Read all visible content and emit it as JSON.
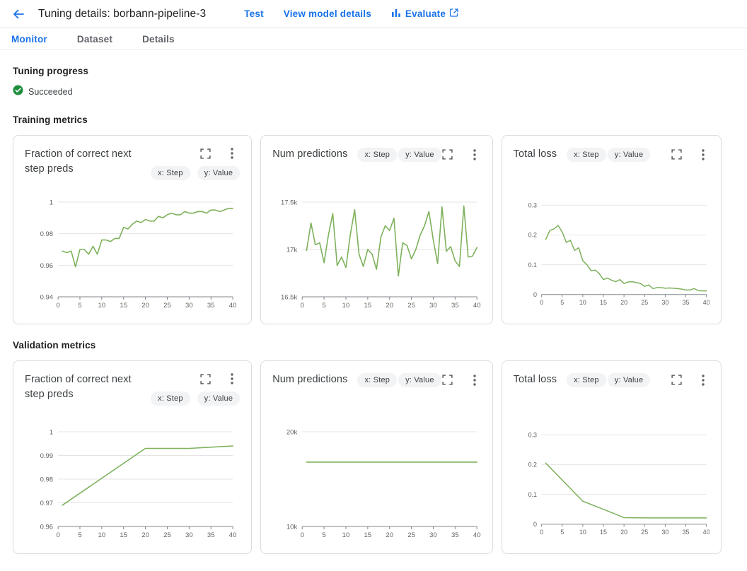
{
  "page": {
    "header": {
      "title": "Tuning details: borbann-pipeline-3",
      "actions": {
        "test": "Test",
        "view_model": "View model details",
        "evaluate": "Evaluate"
      }
    },
    "tabs": [
      {
        "label": "Monitor",
        "active": true
      },
      {
        "label": "Dataset",
        "active": false
      },
      {
        "label": "Details",
        "active": false
      }
    ],
    "sections": {
      "progress_heading": "Tuning progress",
      "training_heading": "Training metrics",
      "validation_heading": "Validation metrics"
    },
    "status": {
      "label": "Succeeded",
      "icon": "check-circle"
    }
  },
  "colors": {
    "accent": "#1a73e8",
    "success_green": "#1e8e3e",
    "chart_line": "#7eb15c",
    "grid_line": "#e4e4e4",
    "axis_line": "#80868b",
    "tick_text": "#616161",
    "chip_bg": "#f1f3f4",
    "card_border": "#dadce0"
  },
  "icons": {
    "back": "arrow-left",
    "evaluate": "bar-chart",
    "external": "launch",
    "expand": "fullscreen",
    "menu": "kebab-vertical",
    "status": "check-circle"
  },
  "chart_data": [
    {
      "type": "line",
      "section": "Training metrics",
      "title": "Fraction of correct next step preds",
      "x_chip": "x: Step",
      "y_chip": "y: Value",
      "xlim": [
        0,
        40
      ],
      "ylim": [
        0.94,
        1
      ],
      "xticks": [
        0,
        5,
        10,
        15,
        20,
        25,
        30,
        35,
        40
      ],
      "yticks": [
        {
          "value": 0.94,
          "label": "0.94"
        },
        {
          "value": 0.96,
          "label": "0.96"
        },
        {
          "value": 0.98,
          "label": "0.98"
        },
        {
          "value": 1,
          "label": "1"
        }
      ],
      "x": [
        1,
        2,
        3,
        4,
        5,
        6,
        7,
        8,
        9,
        10,
        11,
        12,
        13,
        14,
        15,
        16,
        17,
        18,
        19,
        20,
        21,
        22,
        23,
        24,
        25,
        26,
        27,
        28,
        29,
        30,
        31,
        32,
        33,
        34,
        35,
        36,
        37,
        38,
        39,
        40
      ],
      "series": [
        {
          "name": "Value",
          "values": [
            0.969,
            0.968,
            0.969,
            0.959,
            0.97,
            0.97,
            0.967,
            0.972,
            0.967,
            0.976,
            0.976,
            0.975,
            0.977,
            0.977,
            0.984,
            0.983,
            0.986,
            0.988,
            0.987,
            0.989,
            0.988,
            0.988,
            0.991,
            0.99,
            0.992,
            0.993,
            0.992,
            0.992,
            0.994,
            0.993,
            0.993,
            0.994,
            0.994,
            0.993,
            0.995,
            0.995,
            0.994,
            0.995,
            0.996,
            0.996
          ]
        }
      ]
    },
    {
      "type": "line",
      "section": "Training metrics",
      "title": "Num predictions",
      "x_chip": "x: Step",
      "y_chip": "y: Value",
      "xlim": [
        0,
        40
      ],
      "ylim": [
        16500,
        17500
      ],
      "xticks": [
        0,
        5,
        10,
        15,
        20,
        25,
        30,
        35,
        40
      ],
      "yticks": [
        {
          "value": 16500,
          "label": "16.5k"
        },
        {
          "value": 17000,
          "label": "17k"
        },
        {
          "value": 17500,
          "label": "17.5k"
        }
      ],
      "x": [
        1,
        2,
        3,
        4,
        5,
        6,
        7,
        8,
        9,
        10,
        11,
        12,
        13,
        14,
        15,
        16,
        17,
        18,
        19,
        20,
        21,
        22,
        23,
        24,
        25,
        26,
        27,
        28,
        29,
        30,
        31,
        32,
        33,
        34,
        35,
        36,
        37,
        38,
        39,
        40
      ],
      "series": [
        {
          "name": "Value",
          "values": [
            16990,
            17280,
            17050,
            17070,
            16860,
            17150,
            17380,
            16830,
            16920,
            16810,
            17150,
            17420,
            16950,
            16820,
            17000,
            16950,
            16790,
            17130,
            17250,
            17200,
            17330,
            16720,
            17070,
            17040,
            16900,
            17000,
            17150,
            17250,
            17400,
            17100,
            16850,
            17450,
            16980,
            17030,
            16880,
            16820,
            17460,
            16920,
            16930,
            17020
          ]
        }
      ]
    },
    {
      "type": "line",
      "section": "Training metrics",
      "title": "Total loss",
      "x_chip": "x: Step",
      "y_chip": "y: Value",
      "xlim": [
        0,
        40
      ],
      "ylim": [
        0,
        0.3
      ],
      "xticks": [
        0,
        5,
        10,
        15,
        20,
        25,
        30,
        35,
        40
      ],
      "yticks": [
        {
          "value": 0,
          "label": "0"
        },
        {
          "value": 0.1,
          "label": "0.1"
        },
        {
          "value": 0.2,
          "label": "0.2"
        },
        {
          "value": 0.3,
          "label": "0.3"
        }
      ],
      "x": [
        1,
        2,
        3,
        4,
        5,
        6,
        7,
        8,
        9,
        10,
        11,
        12,
        13,
        14,
        15,
        16,
        17,
        18,
        19,
        20,
        21,
        22,
        23,
        24,
        25,
        26,
        27,
        28,
        29,
        30,
        31,
        32,
        33,
        34,
        35,
        36,
        37,
        38,
        39,
        40
      ],
      "series": [
        {
          "name": "Value",
          "values": [
            0.185,
            0.215,
            0.22,
            0.232,
            0.21,
            0.175,
            0.182,
            0.148,
            0.157,
            0.113,
            0.1,
            0.08,
            0.082,
            0.07,
            0.05,
            0.055,
            0.048,
            0.043,
            0.05,
            0.037,
            0.042,
            0.043,
            0.04,
            0.037,
            0.027,
            0.032,
            0.02,
            0.023,
            0.023,
            0.021,
            0.022,
            0.021,
            0.02,
            0.018,
            0.015,
            0.015,
            0.02,
            0.013,
            0.012,
            0.012
          ]
        }
      ]
    },
    {
      "type": "line",
      "section": "Validation metrics",
      "title": "Fraction of correct next step preds",
      "x_chip": "x: Step",
      "y_chip": "y: Value",
      "xlim": [
        0,
        40
      ],
      "ylim": [
        0.96,
        1
      ],
      "xticks": [
        0,
        5,
        10,
        15,
        20,
        25,
        30,
        35,
        40
      ],
      "yticks": [
        {
          "value": 0.96,
          "label": "0.96"
        },
        {
          "value": 0.97,
          "label": "0.97"
        },
        {
          "value": 0.98,
          "label": "0.98"
        },
        {
          "value": 0.99,
          "label": "0.99"
        },
        {
          "value": 1,
          "label": "1"
        }
      ],
      "x": [
        1,
        20,
        30,
        40
      ],
      "series": [
        {
          "name": "Value",
          "values": [
            0.969,
            0.993,
            0.993,
            0.994
          ]
        }
      ]
    },
    {
      "type": "line",
      "section": "Validation metrics",
      "title": "Num predictions",
      "x_chip": "x: Step",
      "y_chip": "y: Value",
      "xlim": [
        0,
        40
      ],
      "ylim": [
        10000,
        20000
      ],
      "xticks": [
        0,
        5,
        10,
        15,
        20,
        25,
        30,
        35,
        40
      ],
      "yticks": [
        {
          "value": 10000,
          "label": "10k"
        },
        {
          "value": 20000,
          "label": "20k"
        }
      ],
      "x": [
        1,
        10,
        20,
        30,
        40
      ],
      "series": [
        {
          "name": "Value",
          "values": [
            16800,
            16800,
            16800,
            16800,
            16800
          ]
        }
      ]
    },
    {
      "type": "line",
      "section": "Validation metrics",
      "title": "Total loss",
      "x_chip": "x: Step",
      "y_chip": "y: Value",
      "xlim": [
        0,
        40
      ],
      "ylim": [
        0,
        0.3
      ],
      "xticks": [
        0,
        5,
        10,
        15,
        20,
        25,
        30,
        35,
        40
      ],
      "yticks": [
        {
          "value": 0,
          "label": "0"
        },
        {
          "value": 0.1,
          "label": "0.1"
        },
        {
          "value": 0.2,
          "label": "0.2"
        },
        {
          "value": 0.3,
          "label": "0.3"
        }
      ],
      "x": [
        1,
        10,
        15,
        20,
        25,
        30,
        35,
        40
      ],
      "series": [
        {
          "name": "Value",
          "values": [
            0.205,
            0.077,
            0.05,
            0.022,
            0.021,
            0.021,
            0.021,
            0.021
          ]
        }
      ]
    }
  ]
}
